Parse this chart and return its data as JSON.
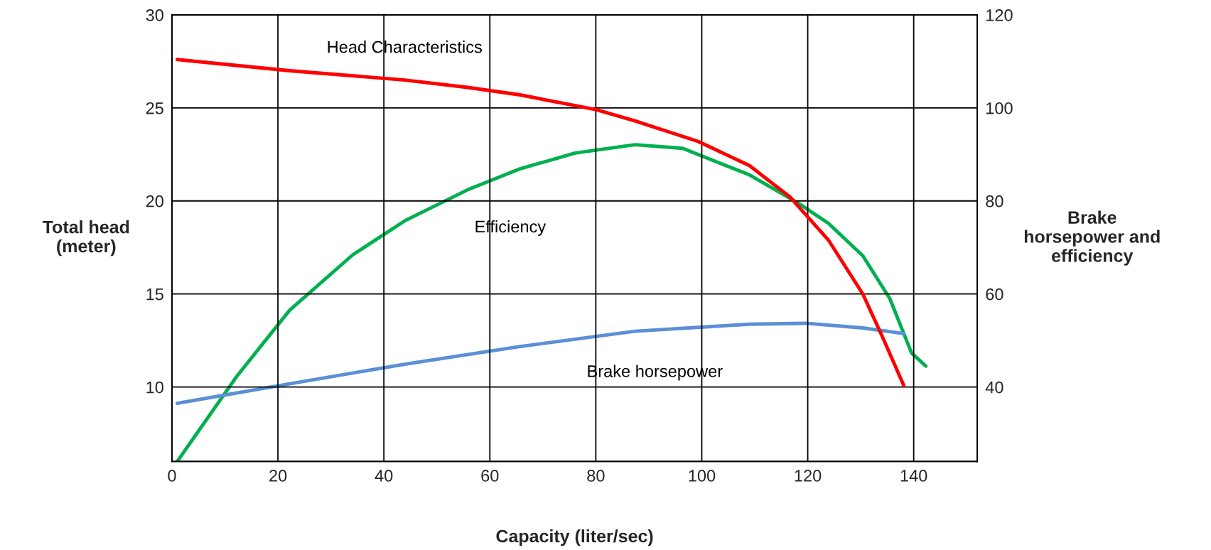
{
  "chart_data": {
    "type": "line",
    "xlabel": "Capacity (liter/sec)",
    "ylabel": "Total head\n(meter)",
    "y2label": "Brake\nhorsepower and\nefficiency",
    "xlim": [
      0,
      152
    ],
    "xticks": [
      0,
      20,
      40,
      60,
      80,
      100,
      120,
      140
    ],
    "ylim": [
      6,
      30
    ],
    "yticks": [
      10,
      15,
      20,
      25,
      30
    ],
    "y2lim": [
      24,
      120
    ],
    "y2ticks": [
      40,
      60,
      80,
      100,
      120
    ],
    "grid": true,
    "legend": false,
    "marker": "none",
    "line_style": "solid",
    "series": [
      {
        "name": "Head Characteristics",
        "color": "#ff0000",
        "x": [
          1,
          22.2,
          43.9,
          55.8,
          65.7,
          80.1,
          87.4,
          99.3,
          109,
          116.7,
          123.9,
          130.4,
          134.1,
          138.1
        ],
        "values": [
          27.6,
          27.0,
          26.5,
          26.1,
          25.7,
          24.9,
          24.3,
          23.2,
          21.9,
          20.2,
          17.9,
          15.0,
          12.7,
          10.1
        ]
      },
      {
        "name": "Efficiency",
        "color": "#00b050",
        "axis": "y2",
        "x": [
          1,
          12.3,
          22.2,
          34.1,
          43.9,
          55.8,
          65.7,
          76.1,
          87.4,
          96.4,
          109,
          118.1,
          123.9,
          130.4,
          135.5,
          139.6,
          142.3
        ],
        "values": [
          24,
          42.4,
          56.5,
          68.4,
          75.7,
          82.4,
          86.9,
          90.3,
          92.1,
          91.3,
          85.6,
          79.6,
          75.2,
          68.2,
          59.0,
          47.3,
          44.5
        ]
      },
      {
        "name": "Brake horsepower",
        "color": "#5b8fd6",
        "axis": "y2",
        "x": [
          1,
          22.2,
          43.9,
          65.7,
          87.4,
          109,
          119.6,
          130.4,
          138.1
        ],
        "values": [
          36.5,
          40.7,
          44.9,
          48.7,
          52.0,
          53.5,
          53.7,
          52.7,
          51.5
        ]
      }
    ]
  }
}
